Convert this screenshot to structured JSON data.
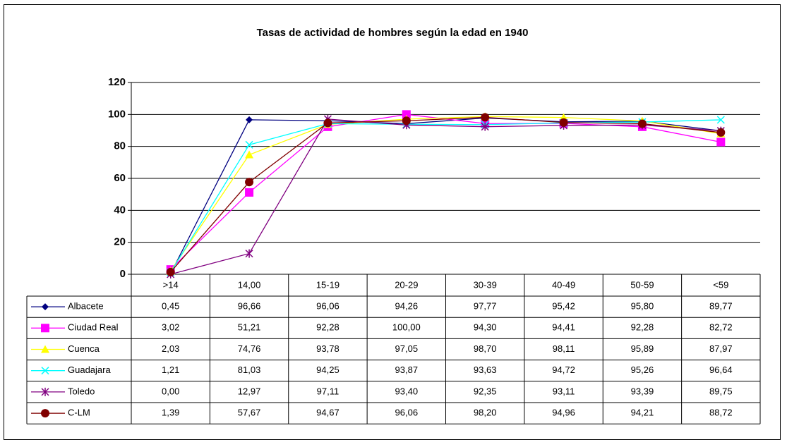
{
  "chart_data": {
    "type": "line",
    "title": "Tasas de actividad de hombres según la edad en 1940",
    "categories": [
      ">14",
      "14,00",
      "15-19",
      "20-29",
      "30-39",
      "40-49",
      "50-59",
      "<59"
    ],
    "ylim": [
      0,
      120
    ],
    "yticks": [
      0,
      20,
      40,
      60,
      80,
      100,
      120
    ],
    "grid": true,
    "series": [
      {
        "name": "Albacete",
        "color": "#000080",
        "marker": "diamond",
        "values": [
          0.45,
          96.66,
          96.06,
          94.26,
          97.77,
          95.42,
          95.8,
          89.77
        ],
        "value_labels": [
          "0,45",
          "96,66",
          "96,06",
          "94,26",
          "97,77",
          "95,42",
          "95,80",
          "89,77"
        ]
      },
      {
        "name": "Ciudad Real",
        "color": "#ff00ff",
        "marker": "square",
        "values": [
          3.02,
          51.21,
          92.28,
          100.0,
          94.3,
          94.41,
          92.28,
          82.72
        ],
        "value_labels": [
          "3,02",
          "51,21",
          "92,28",
          "100,00",
          "94,30",
          "94,41",
          "92,28",
          "82,72"
        ]
      },
      {
        "name": "Cuenca",
        "color": "#ffff00",
        "marker": "triangle",
        "values": [
          2.03,
          74.76,
          93.78,
          97.05,
          98.7,
          98.11,
          95.89,
          87.97
        ],
        "value_labels": [
          "2,03",
          "74,76",
          "93,78",
          "97,05",
          "98,70",
          "98,11",
          "95,89",
          "87,97"
        ]
      },
      {
        "name": "Guadajara",
        "color": "#00ffff",
        "marker": "x",
        "values": [
          1.21,
          81.03,
          94.25,
          93.87,
          93.63,
          94.72,
          95.26,
          96.64
        ],
        "value_labels": [
          "1,21",
          "81,03",
          "94,25",
          "93,87",
          "93,63",
          "94,72",
          "95,26",
          "96,64"
        ]
      },
      {
        "name": "Toledo",
        "color": "#800080",
        "marker": "star",
        "values": [
          0.0,
          12.97,
          97.11,
          93.4,
          92.35,
          93.11,
          93.39,
          89.75
        ],
        "value_labels": [
          "0,00",
          "12,97",
          "97,11",
          "93,40",
          "92,35",
          "93,11",
          "93,39",
          "89,75"
        ]
      },
      {
        "name": "C-LM",
        "color": "#800000",
        "marker": "circle",
        "values": [
          1.39,
          57.67,
          94.67,
          96.06,
          98.2,
          94.96,
          94.21,
          88.72
        ],
        "value_labels": [
          "1,39",
          "57,67",
          "94,67",
          "96,06",
          "98,20",
          "94,96",
          "94,21",
          "88,72"
        ]
      }
    ]
  }
}
